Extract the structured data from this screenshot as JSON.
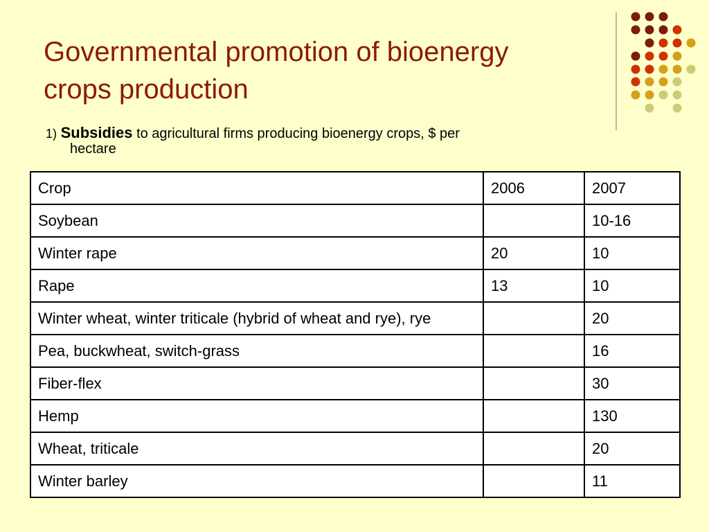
{
  "slide": {
    "title_line1": "Governmental promotion of bioenergy",
    "title_line2": "crops production",
    "subtitle_number": "1)",
    "subtitle_bold": "Subsidies",
    "subtitle_rest": "to agricultural firms producing bioenergy crops, $ per",
    "subtitle_line2": "hectare"
  },
  "table": {
    "headers": [
      "Crop",
      "2006",
      "2007"
    ],
    "rows": [
      [
        "Soybean",
        "",
        "10-16"
      ],
      [
        "Winter rape",
        "20",
        "10"
      ],
      [
        "Rape",
        "13",
        "10"
      ],
      [
        "Winter wheat, winter triticale (hybrid of wheat and rye), rye",
        "",
        "20"
      ],
      [
        "Pea, buckwheat, switch-grass",
        "",
        "16"
      ],
      [
        "Fiber-flex",
        "",
        "30"
      ],
      [
        "Hemp",
        "",
        "130"
      ],
      [
        "Wheat, triticale",
        "",
        "20"
      ],
      [
        "Winter barley",
        "",
        "11"
      ]
    ]
  },
  "colors": {
    "background": "#ffffcc",
    "title": "#8b1a0e",
    "dot_dark": "#7b1c0c",
    "dot_red": "#cc3300",
    "dot_gold": "#d4a017",
    "dot_light": "#cccc77"
  }
}
